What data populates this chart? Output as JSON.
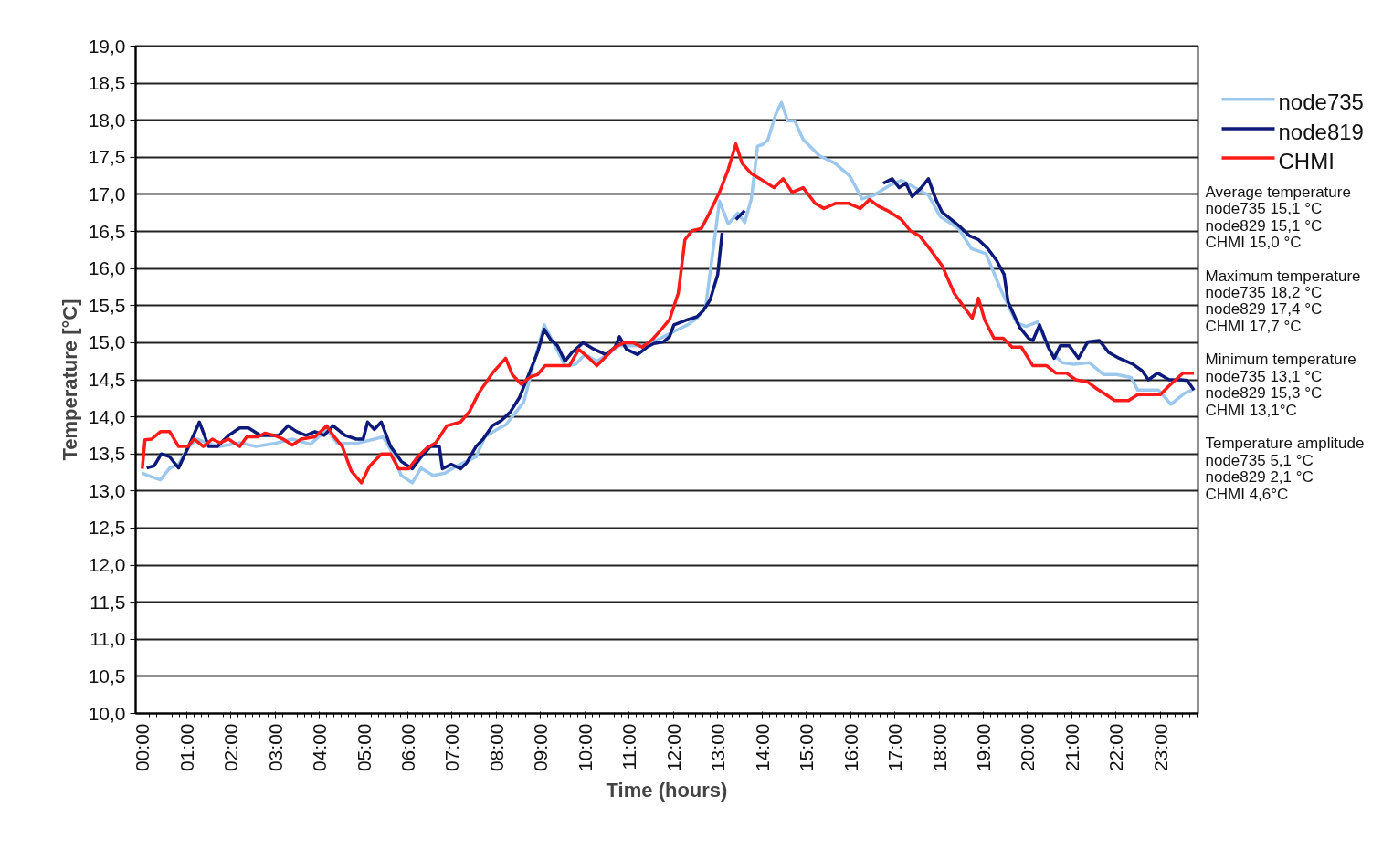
{
  "chart_data": {
    "type": "line",
    "xlabel": "Time (hours)",
    "ylabel": "Temperature [°C]",
    "xlim": [
      -0.15,
      23.85
    ],
    "ylim": [
      10,
      19
    ],
    "xticks": [
      {
        "value": 0,
        "label": "00:00"
      },
      {
        "value": 1,
        "label": "01:00"
      },
      {
        "value": 2,
        "label": "02:00"
      },
      {
        "value": 3,
        "label": "03:00"
      },
      {
        "value": 4,
        "label": "04:00"
      },
      {
        "value": 5,
        "label": "05:00"
      },
      {
        "value": 6,
        "label": "06:00"
      },
      {
        "value": 7,
        "label": "07:00"
      },
      {
        "value": 8,
        "label": "08:00"
      },
      {
        "value": 9,
        "label": "09:00"
      },
      {
        "value": 10,
        "label": "10:00"
      },
      {
        "value": 11,
        "label": "11:00"
      },
      {
        "value": 12,
        "label": "12:00"
      },
      {
        "value": 13,
        "label": "13:00"
      },
      {
        "value": 14,
        "label": "14:00"
      },
      {
        "value": 15,
        "label": "15:00"
      },
      {
        "value": 16,
        "label": "16:00"
      },
      {
        "value": 17,
        "label": "17:00"
      },
      {
        "value": 18,
        "label": "18:00"
      },
      {
        "value": 19,
        "label": "19:00"
      },
      {
        "value": 20,
        "label": "20:00"
      },
      {
        "value": 21,
        "label": "21:00"
      },
      {
        "value": 22,
        "label": "22:00"
      },
      {
        "value": 23,
        "label": "23:00"
      }
    ],
    "yticks": [
      {
        "value": 10,
        "label": "10,0"
      },
      {
        "value": 10.5,
        "label": "10,5"
      },
      {
        "value": 11,
        "label": "11,0"
      },
      {
        "value": 11.5,
        "label": "11,5"
      },
      {
        "value": 12,
        "label": "12,0"
      },
      {
        "value": 12.5,
        "label": "12,5"
      },
      {
        "value": 13,
        "label": "13,0"
      },
      {
        "value": 13.5,
        "label": "13,5"
      },
      {
        "value": 14,
        "label": "14,0"
      },
      {
        "value": 14.5,
        "label": "14,5"
      },
      {
        "value": 15,
        "label": "15,0"
      },
      {
        "value": 15.5,
        "label": "15,5"
      },
      {
        "value": 16,
        "label": "16,0"
      },
      {
        "value": 16.5,
        "label": "16,5"
      },
      {
        "value": 17,
        "label": "17,0"
      },
      {
        "value": 17.5,
        "label": "17,5"
      },
      {
        "value": 18,
        "label": "18,0"
      },
      {
        "value": 18.5,
        "label": "18,5"
      },
      {
        "value": 19,
        "label": "19,0"
      }
    ],
    "grid": "y",
    "legend": "top right",
    "marker": "none",
    "line_style": "solid",
    "series": [
      {
        "name": "node735",
        "color": "#9cc8ee",
        "x": [
          0.0,
          0.21,
          0.41,
          0.62,
          0.82,
          1.03,
          1.23,
          1.5,
          1.75,
          2.2,
          2.57,
          2.98,
          3.39,
          3.8,
          4.17,
          4.41,
          4.83,
          5.24,
          5.44,
          5.61,
          5.85,
          6.1,
          6.3,
          6.57,
          6.84,
          7.08,
          7.33,
          7.54,
          7.74,
          8.01,
          8.21,
          8.42,
          8.62,
          8.83,
          9.08,
          9.34,
          9.55,
          9.79,
          10.0,
          10.27,
          10.58,
          10.78,
          11.09,
          11.4,
          11.6,
          11.91,
          12.11,
          12.32,
          12.53,
          12.73,
          13.04,
          13.24,
          13.45,
          13.61,
          13.76,
          13.9,
          14.0,
          14.13,
          14.31,
          14.44,
          14.58,
          14.74,
          14.93,
          15.3,
          15.65,
          15.98,
          16.26,
          16.53,
          16.88,
          17.15,
          17.76,
          18.03,
          18.44,
          18.73,
          19.06,
          19.4,
          19.75,
          19.96,
          20.23,
          20.49,
          20.78,
          21.05,
          21.4,
          21.72,
          22.01,
          22.34,
          22.49,
          22.96,
          23.24,
          23.55,
          23.72
        ],
        "values": [
          13.24,
          13.19,
          13.15,
          13.31,
          13.36,
          13.58,
          13.7,
          13.64,
          13.6,
          13.65,
          13.6,
          13.64,
          13.7,
          13.63,
          13.83,
          13.64,
          13.64,
          13.7,
          13.73,
          13.56,
          13.21,
          13.11,
          13.31,
          13.21,
          13.24,
          13.33,
          13.4,
          13.46,
          13.73,
          13.83,
          13.89,
          14.05,
          14.2,
          14.69,
          15.24,
          14.94,
          14.69,
          14.71,
          14.84,
          14.75,
          14.87,
          14.96,
          14.96,
          14.96,
          15.03,
          15.12,
          15.18,
          15.24,
          15.33,
          15.49,
          16.91,
          16.6,
          16.75,
          16.62,
          16.94,
          17.65,
          17.67,
          17.73,
          18.08,
          18.24,
          17.99,
          17.99,
          17.74,
          17.52,
          17.42,
          17.25,
          16.94,
          16.99,
          17.12,
          17.19,
          16.99,
          16.7,
          16.54,
          16.27,
          16.2,
          15.71,
          15.27,
          15.22,
          15.28,
          14.9,
          14.73,
          14.71,
          14.73,
          14.57,
          14.57,
          14.53,
          14.36,
          14.36,
          14.17,
          14.32,
          14.36
        ]
      },
      {
        "name": "node819",
        "color": "#0d1a7a",
        "x": [
          0.1,
          0.27,
          0.43,
          0.62,
          0.82,
          1.03,
          1.29,
          1.5,
          1.7,
          1.95,
          2.2,
          2.4,
          2.67,
          2.87,
          3.08,
          3.29,
          3.49,
          3.7,
          3.9,
          4.11,
          4.31,
          4.58,
          4.83,
          4.99,
          5.09,
          5.24,
          5.4,
          5.61,
          5.85,
          6.1,
          6.3,
          6.51,
          6.71,
          6.78,
          6.98,
          7.19,
          7.33,
          7.54,
          7.7,
          7.91,
          8.11,
          8.32,
          8.52,
          8.73,
          8.93,
          9.08,
          9.24,
          9.38,
          9.55,
          9.71,
          9.96,
          10.21,
          10.47,
          10.68,
          10.78,
          10.94,
          11.19,
          11.4,
          11.56,
          11.77,
          11.91,
          12.01,
          12.32,
          12.53,
          12.67,
          12.83,
          13.0,
          13.1,
          13.25,
          13.41,
          13.61,
          15.0,
          16.74,
          16.94,
          17.1,
          17.25,
          17.39,
          17.6,
          17.76,
          17.93,
          18.07,
          18.28,
          18.48,
          18.69,
          18.89,
          19.1,
          19.3,
          19.47,
          19.56,
          19.82,
          20.02,
          20.12,
          20.27,
          20.47,
          20.6,
          20.74,
          20.94,
          21.15,
          21.36,
          21.62,
          21.83,
          22.07,
          22.38,
          22.59,
          22.73,
          22.94,
          23.2,
          23.47,
          23.61,
          23.76
        ],
        "values": [
          13.31,
          13.34,
          13.5,
          13.46,
          13.31,
          13.58,
          13.93,
          13.6,
          13.6,
          13.75,
          13.85,
          13.85,
          13.75,
          13.75,
          13.75,
          13.88,
          13.8,
          13.75,
          13.8,
          13.75,
          13.88,
          13.75,
          13.7,
          13.7,
          13.93,
          13.83,
          13.93,
          13.6,
          13.4,
          13.3,
          13.46,
          13.6,
          13.6,
          13.3,
          13.36,
          13.3,
          13.38,
          13.6,
          13.7,
          13.88,
          13.95,
          14.07,
          14.26,
          14.57,
          14.87,
          15.18,
          15.03,
          14.96,
          14.75,
          14.87,
          15.0,
          14.91,
          14.84,
          14.94,
          15.08,
          14.91,
          14.84,
          14.94,
          14.99,
          15.01,
          15.08,
          15.24,
          15.31,
          15.35,
          15.43,
          15.58,
          15.92,
          16.48,
          null,
          16.66,
          16.78,
          null,
          17.15,
          17.21,
          17.09,
          17.15,
          16.97,
          17.09,
          17.21,
          16.93,
          16.76,
          16.66,
          16.56,
          16.44,
          16.39,
          16.27,
          16.11,
          15.92,
          15.55,
          15.21,
          15.06,
          15.03,
          15.24,
          14.94,
          14.79,
          14.96,
          14.96,
          14.79,
          15.01,
          15.03,
          14.87,
          14.79,
          14.71,
          14.62,
          14.5,
          14.59,
          14.5,
          14.5,
          14.49,
          14.36
        ]
      },
      {
        "name": "CHMI",
        "color": "#ff1a1a",
        "x": [
          0.0,
          0.06,
          0.21,
          0.41,
          0.62,
          0.82,
          1.03,
          1.17,
          1.38,
          1.58,
          1.75,
          1.95,
          2.2,
          2.36,
          2.61,
          2.77,
          2.98,
          3.18,
          3.39,
          3.59,
          3.9,
          4.17,
          4.31,
          4.52,
          4.72,
          4.95,
          5.13,
          5.4,
          5.61,
          5.79,
          6.02,
          6.22,
          6.43,
          6.63,
          6.88,
          7.19,
          7.39,
          7.6,
          7.91,
          8.21,
          8.36,
          8.56,
          8.77,
          8.93,
          9.1,
          9.34,
          9.65,
          9.86,
          10.06,
          10.27,
          10.47,
          10.68,
          10.88,
          11.09,
          11.29,
          11.5,
          11.7,
          11.91,
          12.11,
          12.26,
          12.42,
          12.63,
          12.79,
          13.04,
          13.24,
          13.41,
          13.55,
          13.76,
          13.96,
          14.27,
          14.48,
          14.68,
          14.93,
          15.2,
          15.4,
          15.67,
          15.95,
          16.22,
          16.43,
          16.63,
          16.84,
          17.15,
          17.35,
          17.56,
          17.76,
          18.07,
          18.34,
          18.54,
          18.75,
          18.89,
          19.03,
          19.24,
          19.45,
          19.65,
          19.86,
          20.12,
          20.43,
          20.64,
          20.88,
          21.09,
          21.36,
          21.56,
          21.77,
          21.97,
          22.28,
          22.49,
          22.73,
          23.0,
          23.2,
          23.51,
          23.76
        ],
        "values": [
          13.3,
          13.69,
          13.7,
          13.8,
          13.8,
          13.6,
          13.6,
          13.7,
          13.6,
          13.7,
          13.65,
          13.7,
          13.6,
          13.73,
          13.73,
          13.78,
          13.75,
          13.7,
          13.62,
          13.7,
          13.73,
          13.88,
          13.75,
          13.6,
          13.27,
          13.11,
          13.33,
          13.5,
          13.5,
          13.3,
          13.3,
          13.46,
          13.58,
          13.65,
          13.88,
          13.93,
          14.07,
          14.32,
          14.59,
          14.79,
          14.57,
          14.44,
          14.54,
          14.57,
          14.69,
          14.69,
          14.69,
          14.91,
          14.81,
          14.69,
          14.81,
          14.94,
          15.0,
          15.0,
          14.94,
          15.03,
          15.16,
          15.31,
          15.67,
          16.39,
          16.51,
          16.54,
          16.72,
          17.03,
          17.34,
          17.68,
          17.42,
          17.28,
          17.21,
          17.09,
          17.21,
          17.03,
          17.09,
          16.88,
          16.81,
          16.88,
          16.88,
          16.81,
          16.93,
          16.84,
          16.78,
          16.66,
          16.51,
          16.44,
          16.29,
          16.04,
          15.67,
          15.5,
          15.33,
          15.6,
          15.31,
          15.06,
          15.06,
          14.94,
          14.94,
          14.69,
          14.69,
          14.59,
          14.59,
          14.5,
          14.47,
          14.38,
          14.3,
          14.22,
          14.22,
          14.3,
          14.3,
          14.3,
          14.42,
          14.59,
          14.59
        ]
      }
    ],
    "annotations": [
      "Average temperature",
      "node735 15,1 °C",
      "node829 15,1 °C",
      "CHMI 15,0 °C",
      "Maximum temperature",
      "node735 18,2 °C",
      "node829 17,4 °C",
      "CHMI 17,7 °C",
      "Minimum temperature",
      "node735 13,1 °C",
      "node829 15,3 °C",
      "CHMI 13,1°C",
      "Temperature amplitude",
      "node735 5,1 °C",
      "node829 2,1 °C",
      "CHMI 4,6°C"
    ]
  }
}
